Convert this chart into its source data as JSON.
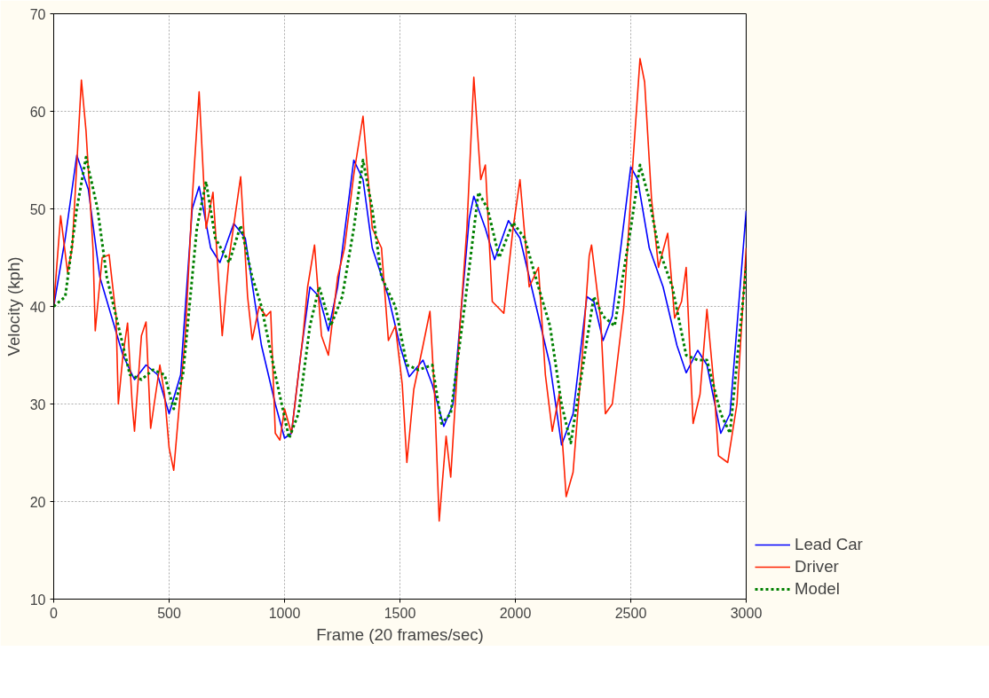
{
  "chart_data": {
    "type": "line",
    "xlabel": "Frame (20 frames/sec)",
    "ylabel": "Velocity (kph)",
    "xlim": [
      0,
      3000
    ],
    "ylim": [
      10,
      70
    ],
    "xticks": [
      0,
      500,
      1000,
      1500,
      2000,
      2500,
      3000
    ],
    "yticks": [
      10,
      20,
      30,
      40,
      50,
      60,
      70
    ],
    "grid": true,
    "legend": "bottom right",
    "series": [
      {
        "name": "Lead Car",
        "color": "#0000ff",
        "line_style": "solid",
        "x": [
          0,
          50,
          100,
          150,
          200,
          250,
          300,
          350,
          400,
          450,
          500,
          550,
          600,
          630,
          680,
          720,
          780,
          830,
          900,
          960,
          1000,
          1030,
          1070,
          1110,
          1150,
          1190,
          1230,
          1300,
          1340,
          1380,
          1450,
          1500,
          1540,
          1600,
          1640,
          1690,
          1730,
          1800,
          1820,
          1870,
          1910,
          1970,
          2020,
          2100,
          2150,
          2200,
          2250,
          2310,
          2340,
          2380,
          2420,
          2500,
          2530,
          2580,
          2640,
          2700,
          2740,
          2790,
          2830,
          2890,
          2930,
          3000
        ],
        "values": [
          40,
          47,
          55.5,
          52,
          43,
          39,
          35,
          32.5,
          34,
          33,
          29,
          33,
          50,
          52.3,
          46,
          44.5,
          48.5,
          47,
          36,
          30,
          26.5,
          27,
          35,
          42,
          41,
          37.5,
          42,
          55,
          53,
          46,
          41,
          36,
          32.8,
          34.5,
          32,
          27.7,
          30,
          49,
          51.3,
          48,
          44.8,
          48.8,
          47,
          39,
          34,
          25.8,
          29,
          41,
          40.5,
          36.5,
          39,
          54.3,
          53,
          46,
          42,
          36,
          33.2,
          35.5,
          34,
          27,
          29,
          49.8
        ]
      },
      {
        "name": "Driver",
        "color": "#ff2000",
        "line_style": "solid",
        "x": [
          0,
          30,
          60,
          80,
          120,
          140,
          170,
          180,
          210,
          240,
          270,
          280,
          300,
          320,
          340,
          350,
          380,
          400,
          420,
          460,
          480,
          500,
          520,
          570,
          600,
          630,
          660,
          690,
          730,
          760,
          810,
          840,
          860,
          890,
          920,
          940,
          960,
          980,
          1000,
          1030,
          1080,
          1100,
          1130,
          1160,
          1190,
          1230,
          1260,
          1300,
          1340,
          1380,
          1420,
          1450,
          1480,
          1510,
          1530,
          1560,
          1600,
          1630,
          1650,
          1670,
          1700,
          1720,
          1760,
          1790,
          1820,
          1850,
          1870,
          1900,
          1950,
          1990,
          2020,
          2060,
          2100,
          2130,
          2160,
          2190,
          2220,
          2250,
          2290,
          2320,
          2330,
          2370,
          2390,
          2420,
          2470,
          2510,
          2540,
          2560,
          2590,
          2620,
          2660,
          2690,
          2720,
          2740,
          2770,
          2800,
          2830,
          2860,
          2880,
          2920,
          2960,
          3000
        ],
        "values": [
          40,
          49.3,
          43.5,
          46,
          63.2,
          58,
          46,
          37.5,
          45,
          45.3,
          39,
          30,
          35,
          38.3,
          30,
          27.2,
          37,
          38.4,
          27.5,
          34,
          31,
          25.5,
          23.2,
          37,
          51,
          62,
          48,
          51.7,
          37,
          45,
          53.3,
          41,
          36.6,
          40,
          39,
          39.5,
          27,
          26.3,
          29.5,
          27,
          37,
          42,
          46.3,
          37,
          35,
          43,
          46,
          53.5,
          59.5,
          48,
          46,
          36.5,
          38,
          32,
          24,
          31.5,
          36,
          39.5,
          31,
          18,
          26.7,
          22.5,
          38,
          48,
          63.5,
          53,
          54.5,
          40.5,
          39.3,
          48,
          53,
          42,
          44,
          33,
          27.2,
          31,
          20.5,
          23,
          35,
          45.2,
          46.3,
          38.5,
          29,
          30,
          40,
          55,
          65.4,
          63,
          51,
          44,
          47.5,
          38.8,
          40.5,
          44,
          28,
          31,
          39.7,
          32,
          24.7,
          24,
          30,
          46
        ]
      },
      {
        "name": "Model",
        "color": "#008000",
        "line_style": "dotted",
        "x": [
          0,
          50,
          100,
          140,
          190,
          230,
          280,
          330,
          380,
          430,
          480,
          520,
          560,
          620,
          660,
          700,
          760,
          810,
          860,
          900,
          960,
          1020,
          1060,
          1110,
          1150,
          1200,
          1250,
          1300,
          1340,
          1380,
          1420,
          1480,
          1530,
          1580,
          1640,
          1680,
          1720,
          1780,
          1840,
          1880,
          1930,
          1990,
          2040,
          2100,
          2150,
          2200,
          2240,
          2280,
          2340,
          2380,
          2430,
          2500,
          2540,
          2580,
          2620,
          2680,
          2740,
          2790,
          2830,
          2890,
          2930,
          3000
        ],
        "values": [
          40,
          41,
          50,
          55.3,
          50,
          43,
          38,
          33,
          32.5,
          33.5,
          33,
          29.5,
          33,
          48,
          52.8,
          47,
          44.5,
          48.3,
          43,
          40,
          33,
          26.5,
          29,
          38,
          42,
          38,
          41,
          48,
          55,
          50,
          43,
          40,
          34,
          33.5,
          34,
          28,
          29,
          40,
          51.7,
          50,
          45,
          48.6,
          47,
          42,
          38,
          30,
          26,
          32,
          41,
          39,
          38,
          48,
          54.5,
          51,
          46,
          42,
          35,
          34.5,
          34.5,
          29,
          27,
          44
        ]
      }
    ]
  }
}
